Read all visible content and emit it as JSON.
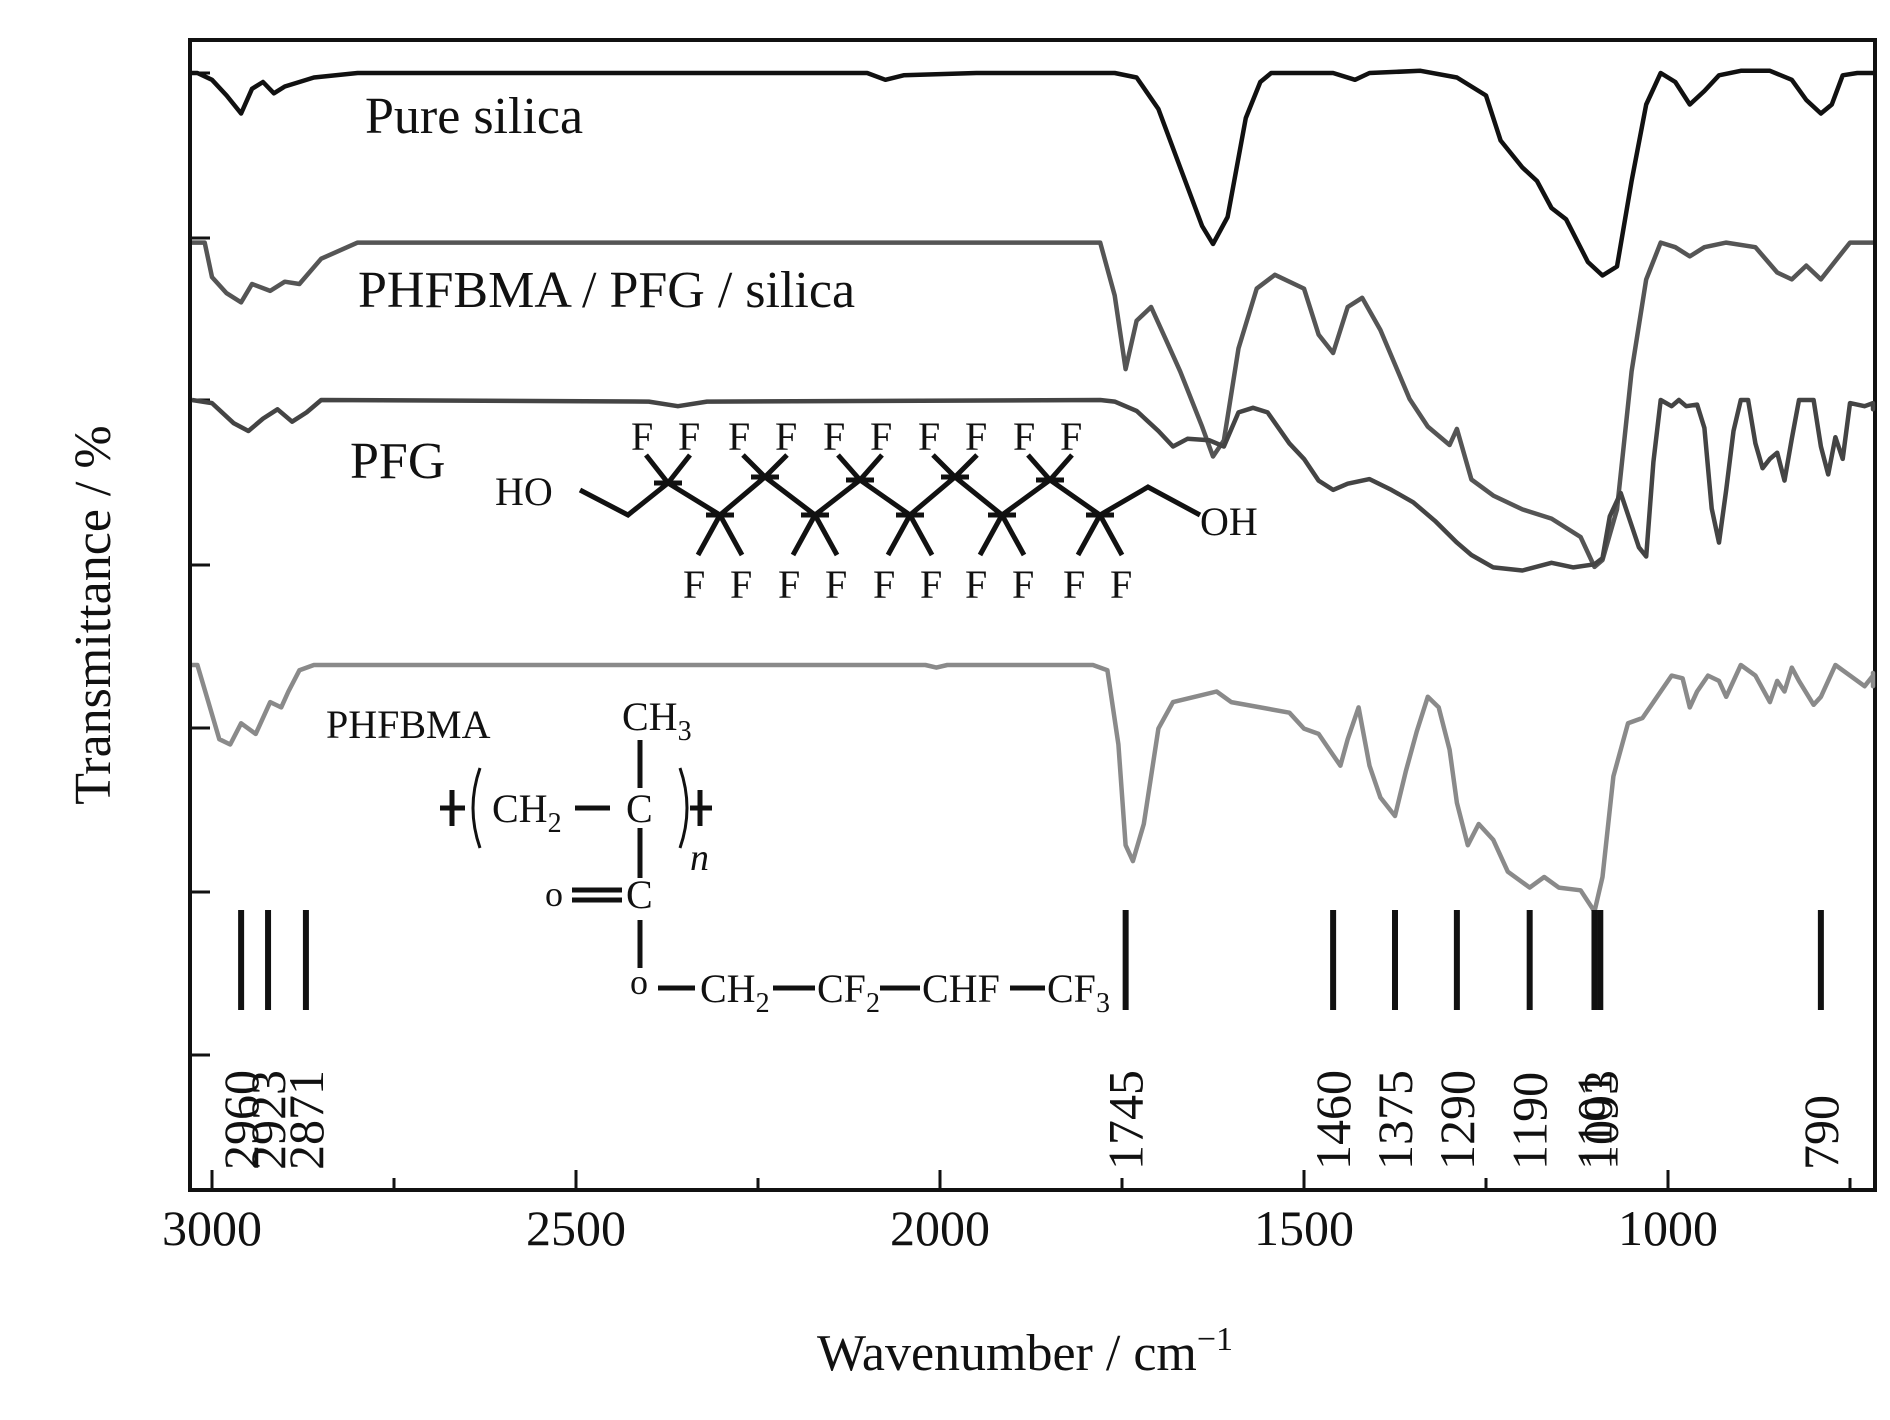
{
  "chart_data": {
    "type": "line",
    "title": "",
    "xlabel": "Wavenumber / cm",
    "xlabel_sup": "−1",
    "ylabel": "Transmittance / %",
    "xlim": [
      3100,
      650
    ],
    "x_reversed": true,
    "x_ticks": [
      3000,
      2500,
      2000,
      1500,
      1000
    ],
    "x_tick_labels": [
      "3000",
      "2500",
      "2000",
      "1500",
      "1000"
    ],
    "y_tick_labels_shown": false,
    "grid": false,
    "legend": "none",
    "series": [
      {
        "name": "Pure silica",
        "color": "#111111",
        "points": [
          [
            3100,
            100
          ],
          [
            3020,
            100
          ],
          [
            3000,
            97
          ],
          [
            2980,
            90
          ],
          [
            2960,
            82
          ],
          [
            2945,
            93
          ],
          [
            2930,
            96
          ],
          [
            2915,
            91
          ],
          [
            2900,
            94
          ],
          [
            2880,
            96
          ],
          [
            2860,
            98
          ],
          [
            2800,
            100
          ],
          [
            2100,
            100
          ],
          [
            2075,
            97
          ],
          [
            2050,
            99
          ],
          [
            1950,
            100
          ],
          [
            1760,
            100
          ],
          [
            1730,
            98
          ],
          [
            1700,
            84
          ],
          [
            1670,
            58
          ],
          [
            1640,
            32
          ],
          [
            1625,
            24
          ],
          [
            1605,
            36
          ],
          [
            1580,
            80
          ],
          [
            1560,
            96
          ],
          [
            1545,
            100
          ],
          [
            1460,
            100
          ],
          [
            1430,
            97
          ],
          [
            1410,
            100
          ],
          [
            1340,
            101
          ],
          [
            1290,
            98
          ],
          [
            1250,
            90
          ],
          [
            1230,
            70
          ],
          [
            1200,
            58
          ],
          [
            1180,
            52
          ],
          [
            1160,
            40
          ],
          [
            1140,
            35
          ],
          [
            1110,
            16
          ],
          [
            1090,
            10
          ],
          [
            1070,
            14
          ],
          [
            1050,
            52
          ],
          [
            1030,
            86
          ],
          [
            1010,
            100
          ],
          [
            990,
            96
          ],
          [
            970,
            86
          ],
          [
            950,
            92
          ],
          [
            930,
            99
          ],
          [
            900,
            101
          ],
          [
            860,
            101
          ],
          [
            830,
            97
          ],
          [
            810,
            88
          ],
          [
            790,
            82
          ],
          [
            775,
            86
          ],
          [
            760,
            99
          ],
          [
            740,
            100
          ],
          [
            650,
            100
          ]
        ]
      },
      {
        "name": "PHFBMA / PFG / silica",
        "color": "#555555",
        "points": [
          [
            3100,
            98
          ],
          [
            3010,
            98
          ],
          [
            3000,
            83
          ],
          [
            2980,
            76
          ],
          [
            2960,
            72
          ],
          [
            2945,
            80
          ],
          [
            2920,
            77
          ],
          [
            2900,
            81
          ],
          [
            2880,
            80
          ],
          [
            2850,
            91
          ],
          [
            2800,
            98
          ],
          [
            1780,
            98
          ],
          [
            1760,
            75
          ],
          [
            1745,
            43
          ],
          [
            1730,
            64
          ],
          [
            1710,
            70
          ],
          [
            1690,
            56
          ],
          [
            1670,
            42
          ],
          [
            1640,
            18
          ],
          [
            1625,
            5
          ],
          [
            1610,
            12
          ],
          [
            1590,
            52
          ],
          [
            1565,
            78
          ],
          [
            1540,
            84
          ],
          [
            1500,
            78
          ],
          [
            1480,
            58
          ],
          [
            1460,
            50
          ],
          [
            1440,
            70
          ],
          [
            1420,
            74
          ],
          [
            1395,
            60
          ],
          [
            1375,
            45
          ],
          [
            1355,
            30
          ],
          [
            1330,
            18
          ],
          [
            1300,
            10
          ],
          [
            1290,
            17
          ],
          [
            1270,
            -5
          ],
          [
            1240,
            -12
          ],
          [
            1200,
            -18
          ],
          [
            1160,
            -22
          ],
          [
            1120,
            -30
          ],
          [
            1101,
            -43
          ],
          [
            1090,
            -40
          ],
          [
            1070,
            -18
          ],
          [
            1050,
            42
          ],
          [
            1030,
            82
          ],
          [
            1010,
            98
          ],
          [
            990,
            96
          ],
          [
            970,
            92
          ],
          [
            950,
            96
          ],
          [
            920,
            98
          ],
          [
            880,
            96
          ],
          [
            850,
            85
          ],
          [
            830,
            82
          ],
          [
            810,
            88
          ],
          [
            790,
            82
          ],
          [
            770,
            90
          ],
          [
            750,
            98
          ],
          [
            650,
            98
          ]
        ]
      },
      {
        "name": "PFG",
        "color": "#444444",
        "points": [
          [
            3100,
            100
          ],
          [
            3000,
            98
          ],
          [
            2970,
            85
          ],
          [
            2950,
            80
          ],
          [
            2930,
            88
          ],
          [
            2910,
            94
          ],
          [
            2890,
            86
          ],
          [
            2870,
            92
          ],
          [
            2850,
            100
          ],
          [
            2400,
            99
          ],
          [
            2360,
            96
          ],
          [
            2320,
            99
          ],
          [
            1780,
            100
          ],
          [
            1760,
            99
          ],
          [
            1730,
            93
          ],
          [
            1700,
            80
          ],
          [
            1680,
            70
          ],
          [
            1660,
            75
          ],
          [
            1630,
            74
          ],
          [
            1610,
            70
          ],
          [
            1590,
            92
          ],
          [
            1570,
            95
          ],
          [
            1550,
            92
          ],
          [
            1520,
            72
          ],
          [
            1500,
            62
          ],
          [
            1480,
            48
          ],
          [
            1460,
            42
          ],
          [
            1440,
            46
          ],
          [
            1410,
            49
          ],
          [
            1380,
            42
          ],
          [
            1350,
            34
          ],
          [
            1320,
            22
          ],
          [
            1290,
            8
          ],
          [
            1270,
            0
          ],
          [
            1240,
            -8
          ],
          [
            1200,
            -10
          ],
          [
            1160,
            -5
          ],
          [
            1130,
            -8
          ],
          [
            1101,
            -6
          ],
          [
            1090,
            -2
          ],
          [
            1080,
            25
          ],
          [
            1065,
            40
          ],
          [
            1040,
            5
          ],
          [
            1030,
            -1
          ],
          [
            1020,
            60
          ],
          [
            1010,
            100
          ],
          [
            995,
            96
          ],
          [
            985,
            100
          ],
          [
            975,
            96
          ],
          [
            960,
            97
          ],
          [
            950,
            82
          ],
          [
            940,
            30
          ],
          [
            930,
            8
          ],
          [
            920,
            42
          ],
          [
            910,
            80
          ],
          [
            900,
            100
          ],
          [
            890,
            100
          ],
          [
            880,
            72
          ],
          [
            870,
            56
          ],
          [
            860,
            62
          ],
          [
            850,
            66
          ],
          [
            840,
            48
          ],
          [
            830,
            75
          ],
          [
            820,
            100
          ],
          [
            810,
            100
          ],
          [
            800,
            100
          ],
          [
            790,
            70
          ],
          [
            780,
            52
          ],
          [
            770,
            76
          ],
          [
            760,
            62
          ],
          [
            750,
            98
          ],
          [
            730,
            96
          ],
          [
            710,
            98
          ],
          [
            690,
            94
          ],
          [
            670,
            97
          ],
          [
            650,
            95
          ]
        ]
      },
      {
        "name": "PHFBMA",
        "color": "#8a8a8a",
        "points": [
          [
            3100,
            100
          ],
          [
            3020,
            100
          ],
          [
            3005,
            86
          ],
          [
            2990,
            72
          ],
          [
            2975,
            70
          ],
          [
            2960,
            78
          ],
          [
            2940,
            74
          ],
          [
            2920,
            86
          ],
          [
            2905,
            84
          ],
          [
            2895,
            90
          ],
          [
            2880,
            98
          ],
          [
            2860,
            100
          ],
          [
            2020,
            100
          ],
          [
            2005,
            99
          ],
          [
            1990,
            100
          ],
          [
            1790,
            100
          ],
          [
            1770,
            98
          ],
          [
            1755,
            70
          ],
          [
            1745,
            32
          ],
          [
            1735,
            26
          ],
          [
            1720,
            40
          ],
          [
            1700,
            76
          ],
          [
            1680,
            86
          ],
          [
            1650,
            88
          ],
          [
            1620,
            90
          ],
          [
            1600,
            86
          ],
          [
            1560,
            84
          ],
          [
            1520,
            82
          ],
          [
            1500,
            76
          ],
          [
            1480,
            74
          ],
          [
            1460,
            66
          ],
          [
            1450,
            62
          ],
          [
            1440,
            72
          ],
          [
            1425,
            84
          ],
          [
            1410,
            62
          ],
          [
            1395,
            50
          ],
          [
            1375,
            43
          ],
          [
            1360,
            60
          ],
          [
            1345,
            75
          ],
          [
            1330,
            88
          ],
          [
            1315,
            84
          ],
          [
            1300,
            68
          ],
          [
            1290,
            48
          ],
          [
            1275,
            32
          ],
          [
            1260,
            40
          ],
          [
            1240,
            34
          ],
          [
            1220,
            22
          ],
          [
            1200,
            18
          ],
          [
            1190,
            16
          ],
          [
            1170,
            20
          ],
          [
            1150,
            16
          ],
          [
            1120,
            15
          ],
          [
            1101,
            7
          ],
          [
            1090,
            20
          ],
          [
            1075,
            58
          ],
          [
            1055,
            78
          ],
          [
            1035,
            80
          ],
          [
            1010,
            90
          ],
          [
            995,
            96
          ],
          [
            980,
            95
          ],
          [
            970,
            84
          ],
          [
            960,
            90
          ],
          [
            945,
            96
          ],
          [
            930,
            94
          ],
          [
            920,
            88
          ],
          [
            900,
            100
          ],
          [
            880,
            96
          ],
          [
            860,
            86
          ],
          [
            850,
            94
          ],
          [
            840,
            90
          ],
          [
            830,
            99
          ],
          [
            820,
            94
          ],
          [
            800,
            85
          ],
          [
            790,
            88
          ],
          [
            770,
            100
          ],
          [
            750,
            96
          ],
          [
            730,
            92
          ],
          [
            710,
            96
          ],
          [
            690,
            92
          ],
          [
            670,
            97
          ],
          [
            650,
            96
          ]
        ]
      }
    ],
    "series_labels": [
      "Pure silica",
      "PHFBMA / PFG / silica",
      "PFG",
      "PHFBMA"
    ],
    "peak_markers": [
      2960,
      2923,
      2871,
      1745,
      1460,
      1375,
      1290,
      1190,
      1101,
      1093,
      790
    ],
    "peak_labels": [
      "2960",
      "2923",
      "2871",
      "1745",
      "1460",
      "1375",
      "1290",
      "1190",
      "1101",
      "1093",
      "790"
    ]
  },
  "structures": {
    "pfg": {
      "end_left": "HO",
      "end_right": "OH",
      "atom": "F"
    },
    "phfbma": {
      "methyl": "CH",
      "methyl_sub": "3",
      "methylene": "CH",
      "methylene_sub": "2",
      "carbon": "C",
      "repeat": "n",
      "oxygen": "o",
      "chain_1": "CH",
      "chain_1_sub": "2",
      "chain_2": "CF",
      "chain_2_sub": "2",
      "chain_3": "CHF",
      "chain_4": "CF",
      "chain_4_sub": "3"
    }
  }
}
